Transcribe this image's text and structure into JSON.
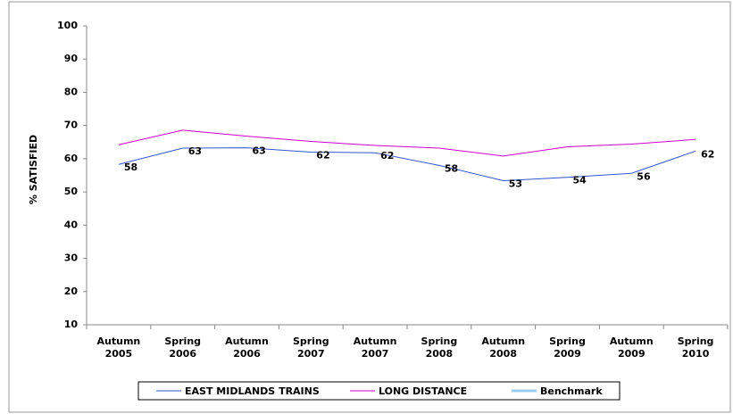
{
  "chart_data": {
    "type": "line",
    "y_label": "% SATISFIED",
    "categories": [
      "Autumn 2005",
      "Spring 2006",
      "Autumn 2006",
      "Spring 2007",
      "Autumn 2007",
      "Spring 2008",
      "Autumn 2008",
      "Spring 2009",
      "Autumn 2009",
      "Spring 2010"
    ],
    "series": [
      {
        "name": "EAST MIDLANDS TRAINS",
        "color": "#3355cc",
        "values": [
          58.3,
          63.2,
          63.3,
          62,
          61.8,
          58,
          53.4,
          54.4,
          55.6,
          62.3
        ],
        "value_labels": [
          "58",
          "63",
          "63",
          "62",
          "62",
          "58",
          "53",
          "54",
          "56",
          "62"
        ]
      },
      {
        "name": "LONG DISTANCE",
        "color": "#cc00cc",
        "values": [
          64.2,
          68.6,
          66.8,
          65.2,
          64,
          63.2,
          60.8,
          63.6,
          64.4,
          65.8
        ]
      },
      {
        "name": "Benchmark",
        "color": "#99ccee",
        "values": [
          null,
          null,
          null,
          null,
          null,
          null,
          null,
          null,
          null,
          null
        ]
      }
    ],
    "ylim": [
      10,
      100
    ],
    "yticks": [
      10,
      20,
      30,
      40,
      50,
      60,
      70,
      80,
      90,
      100
    ]
  }
}
